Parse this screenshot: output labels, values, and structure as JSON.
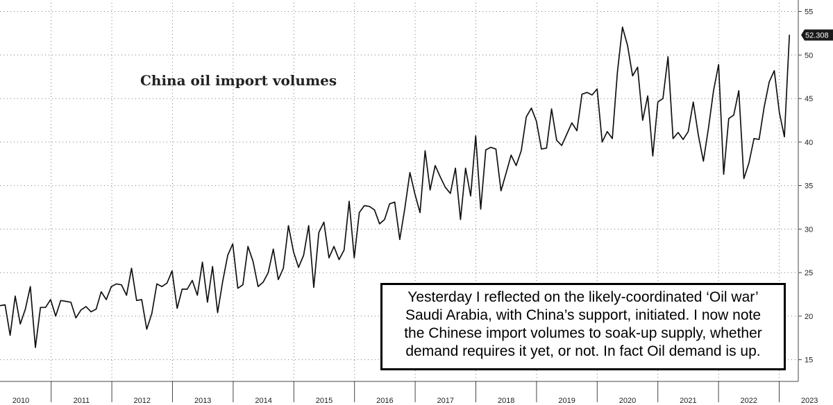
{
  "chart_data": {
    "type": "line",
    "title": "China oil import volumes",
    "xlabel": "",
    "ylabel": "",
    "ylim": [
      12.5,
      56
    ],
    "y_ticks": [
      15,
      20,
      25,
      30,
      35,
      40,
      45,
      50,
      55
    ],
    "year_labels": [
      "2010",
      "2011",
      "2012",
      "2013",
      "2014",
      "2015",
      "2016",
      "2017",
      "2018",
      "2019",
      "2020",
      "2021",
      "2022",
      "2023"
    ],
    "last_value_label": "52.308",
    "grid": true,
    "series": [
      {
        "values": [
          21.2,
          21.3,
          17.8,
          22.3,
          19.1,
          20.8,
          23.4,
          16.4,
          21.0,
          21.0,
          21.9,
          20.0,
          21.8,
          21.7,
          21.6,
          19.8,
          20.7,
          21.1,
          20.5,
          20.8,
          22.8,
          21.9,
          23.4,
          23.7,
          23.6,
          22.4,
          25.5,
          21.8,
          21.9,
          18.5,
          20.3,
          23.7,
          23.4,
          23.8,
          25.2,
          20.9,
          23.1,
          23.1,
          24.1,
          22.4,
          26.2,
          21.6,
          25.7,
          20.4,
          24.0,
          27.0,
          28.3,
          23.2,
          23.6,
          28.0,
          26.3,
          23.4,
          23.9,
          25.0,
          27.7,
          24.2,
          25.5,
          30.4,
          27.4,
          25.6,
          27.0,
          30.4,
          23.3,
          29.6,
          30.8,
          26.7,
          28.0,
          26.5,
          27.6,
          33.2,
          26.7,
          31.9,
          32.7,
          32.6,
          32.2,
          30.6,
          31.1,
          32.9,
          33.1,
          28.8,
          32.4,
          36.5,
          34.0,
          31.9,
          39.0,
          34.5,
          37.3,
          36.0,
          34.8,
          34.1,
          37.0,
          31.1,
          37.0,
          33.8,
          40.7,
          32.3,
          39.1,
          39.4,
          39.2,
          34.4,
          36.4,
          38.5,
          37.3,
          39.0,
          42.9,
          43.9,
          42.4,
          39.2,
          39.3,
          43.8,
          40.2,
          39.6,
          40.9,
          42.2,
          41.3,
          45.5,
          45.7,
          45.4,
          46.1,
          40.0,
          41.2,
          40.4,
          48.0,
          53.2,
          51.1,
          47.6,
          48.6,
          42.5,
          45.3,
          38.4,
          44.6,
          45.0,
          49.8,
          40.4,
          41.1,
          40.3,
          41.2,
          44.6,
          40.8,
          37.8,
          41.6,
          45.9,
          48.9,
          36.3,
          42.7,
          43.1,
          45.9,
          35.8,
          37.6,
          40.4,
          40.3,
          44.0,
          46.9,
          48.2,
          43.4,
          40.6,
          52.3
        ]
      }
    ]
  },
  "annotation": {
    "line1": "Yesterday I reflected on the likely-coordinated ‘Oil war’",
    "line2": "Saudi Arabia, with China’s support, initiated. I now note",
    "line3": "the Chinese import volumes to soak-up supply, whether",
    "line4": "demand requires it yet, or not. In fact Oil demand is up."
  },
  "colors": {
    "line": "#111111",
    "background": "#ffffff",
    "badge": "#1a1a1a"
  }
}
